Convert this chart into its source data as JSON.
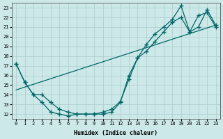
{
  "xlabel": "Humidex (Indice chaleur)",
  "bg_color": "#cce8e8",
  "line_color": "#006666",
  "grid_color": "#aacccc",
  "xlim": [
    -0.5,
    23.5
  ],
  "ylim": [
    11.5,
    23.5
  ],
  "yticks": [
    12,
    13,
    14,
    15,
    16,
    17,
    18,
    19,
    20,
    21,
    22,
    23
  ],
  "xticks": [
    0,
    1,
    2,
    3,
    4,
    5,
    6,
    7,
    8,
    9,
    10,
    11,
    12,
    13,
    14,
    15,
    16,
    17,
    18,
    19,
    20,
    21,
    22,
    23
  ],
  "curve1_x": [
    0,
    1,
    2,
    3,
    4,
    5,
    6,
    7,
    8,
    9,
    10,
    11,
    12,
    13,
    14,
    15,
    16,
    17,
    18,
    19,
    20,
    21,
    22,
    23
  ],
  "curve1_y": [
    17.2,
    15.3,
    14.0,
    13.2,
    12.2,
    12.0,
    11.8,
    12.0,
    12.0,
    12.0,
    12.0,
    12.2,
    13.2,
    16.0,
    17.8,
    19.2,
    20.3,
    21.0,
    21.8,
    23.2,
    20.5,
    22.2,
    22.5,
    21.0
  ],
  "curve2_x": [
    0,
    1,
    2,
    3,
    4,
    5,
    6,
    7,
    8,
    9,
    10,
    11,
    12,
    13,
    14,
    15,
    16,
    17,
    18,
    19,
    20,
    21,
    22,
    23
  ],
  "curve2_y": [
    17.2,
    15.3,
    14.0,
    14.0,
    13.2,
    12.5,
    12.2,
    12.0,
    12.0,
    12.0,
    12.2,
    12.5,
    13.3,
    15.6,
    17.8,
    18.5,
    19.5,
    20.5,
    21.5,
    22.0,
    20.5,
    21.0,
    22.8,
    21.2
  ],
  "line3_x": [
    0,
    23
  ],
  "line3_y": [
    14.5,
    21.2
  ]
}
